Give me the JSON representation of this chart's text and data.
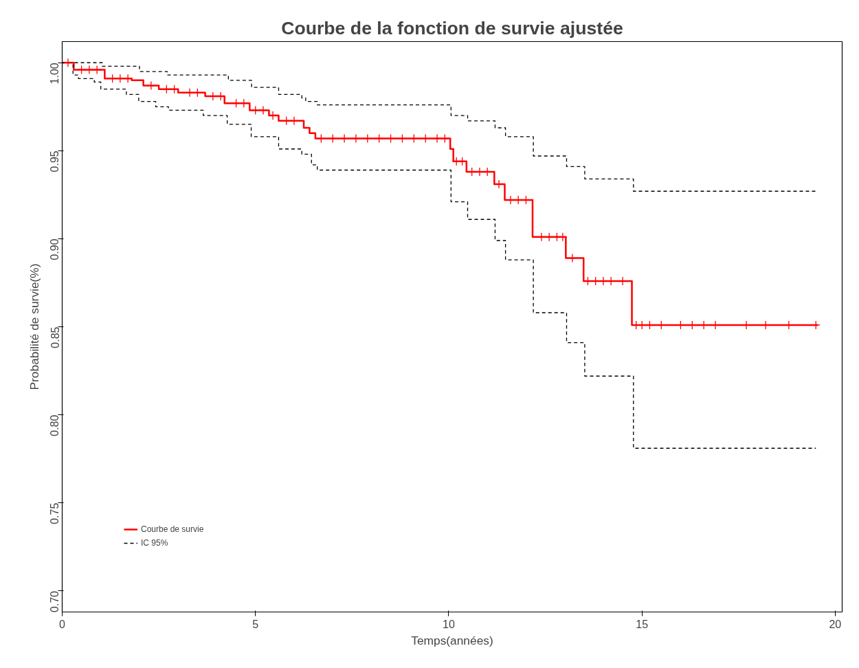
{
  "chart_data": {
    "type": "step",
    "title": "Courbe de la fonction de survie ajustée",
    "xlabel": "Temps(années)",
    "ylabel": "Probabilité de survie(%)",
    "xlim": [
      0,
      20.18
    ],
    "ylim": [
      0.688,
      1.012
    ],
    "xticks": [
      0,
      5,
      10,
      15,
      20
    ],
    "yticks": [
      {
        "value": 0.7,
        "label": "0.70"
      },
      {
        "value": 0.75,
        "label": "0.75"
      },
      {
        "value": 0.8,
        "label": "0.80"
      },
      {
        "value": 0.85,
        "label": "0.85"
      },
      {
        "value": 0.9,
        "label": "0.90"
      },
      {
        "value": 0.95,
        "label": "0.95"
      },
      {
        "value": 1.0,
        "label": "1.00"
      }
    ],
    "grid": false,
    "legend": "bottom left",
    "series": [
      {
        "name": "Courbe de survie",
        "color": "#ff0000",
        "line_style": "solid",
        "x": [
          0,
          0.3,
          1.1,
          1.8,
          2.1,
          2.5,
          3.0,
          3.7,
          4.2,
          4.85,
          5.35,
          5.6,
          6.25,
          6.4,
          6.55,
          10.04,
          10.12,
          10.46,
          11.18,
          11.45,
          12.17,
          13.03,
          13.49,
          14.74,
          19.56
        ],
        "values": [
          1.0,
          0.996,
          0.991,
          0.99,
          0.987,
          0.985,
          0.983,
          0.981,
          0.977,
          0.973,
          0.97,
          0.967,
          0.963,
          0.96,
          0.957,
          0.951,
          0.944,
          0.938,
          0.931,
          0.922,
          0.901,
          0.889,
          0.876,
          0.851,
          0.851
        ]
      },
      {
        "name": "IC 95%",
        "color": "#000000",
        "line_style": "dashed",
        "x": [
          0,
          1.04,
          2.0,
          2.72,
          4.3,
          4.9,
          5.6,
          6.2,
          6.3,
          6.6,
          10.06,
          10.49,
          11.2,
          11.47,
          12.19,
          13.05,
          13.52,
          14.78,
          19.5
        ],
        "values": [
          1.0,
          0.998,
          0.995,
          0.993,
          0.99,
          0.986,
          0.982,
          0.98,
          0.978,
          0.976,
          0.97,
          0.967,
          0.963,
          0.958,
          0.947,
          0.941,
          0.934,
          0.927,
          0.927
        ]
      },
      {
        "color": "#000000",
        "line_style": "dashed",
        "x": [
          0,
          0.28,
          0.42,
          0.83,
          1.0,
          1.66,
          1.98,
          2.42,
          2.75,
          3.65,
          4.27,
          4.89,
          5.6,
          6.2,
          6.45,
          6.6,
          10.06,
          10.49,
          11.2,
          11.47,
          12.19,
          13.05,
          13.52,
          14.78,
          19.5
        ],
        "values": [
          1.0,
          0.993,
          0.991,
          0.989,
          0.985,
          0.982,
          0.978,
          0.975,
          0.973,
          0.97,
          0.965,
          0.958,
          0.951,
          0.948,
          0.942,
          0.939,
          0.921,
          0.911,
          0.899,
          0.888,
          0.858,
          0.841,
          0.822,
          0.781,
          0.781
        ]
      },
      {
        "type": "scatter",
        "color": "#ff0000",
        "marker": "cross",
        "x": [
          0.15,
          0.5,
          0.7,
          0.9,
          1.3,
          1.5,
          1.7,
          2.3,
          2.7,
          2.9,
          3.3,
          3.5,
          3.9,
          4.1,
          4.5,
          4.7,
          5.0,
          5.2,
          5.45,
          5.8,
          6.0,
          6.7,
          7.0,
          7.3,
          7.6,
          7.9,
          8.2,
          8.5,
          8.8,
          9.1,
          9.4,
          9.7,
          9.9,
          10.2,
          10.35,
          10.6,
          10.8,
          11.0,
          11.3,
          11.6,
          11.8,
          12.0,
          12.4,
          12.6,
          12.8,
          12.95,
          13.2,
          13.6,
          13.8,
          14.0,
          14.2,
          14.5,
          14.85,
          15.0,
          15.2,
          15.5,
          16.0,
          16.3,
          16.6,
          16.9,
          17.7,
          18.2,
          18.8,
          19.5
        ],
        "values": [
          1.0,
          0.996,
          0.996,
          0.996,
          0.991,
          0.991,
          0.991,
          0.987,
          0.985,
          0.985,
          0.983,
          0.983,
          0.981,
          0.981,
          0.977,
          0.977,
          0.973,
          0.973,
          0.97,
          0.967,
          0.967,
          0.957,
          0.957,
          0.957,
          0.957,
          0.957,
          0.957,
          0.957,
          0.957,
          0.957,
          0.957,
          0.957,
          0.957,
          0.944,
          0.944,
          0.938,
          0.938,
          0.938,
          0.931,
          0.922,
          0.922,
          0.922,
          0.901,
          0.901,
          0.901,
          0.901,
          0.889,
          0.876,
          0.876,
          0.876,
          0.876,
          0.876,
          0.851,
          0.851,
          0.851,
          0.851,
          0.851,
          0.851,
          0.851,
          0.851,
          0.851,
          0.851,
          0.851,
          0.851
        ]
      }
    ]
  }
}
